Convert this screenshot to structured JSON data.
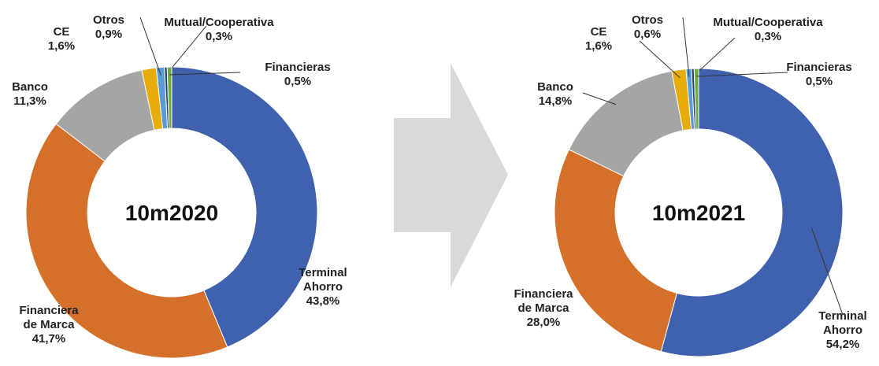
{
  "chart_data": [
    {
      "type": "donut",
      "title": "10m2020",
      "categories": [
        "Terminal Ahorro",
        "Financiera de Marca",
        "Banco",
        "CE",
        "Otros",
        "Mutual/Cooperativa",
        "Financieras"
      ],
      "values": [
        43.8,
        41.7,
        11.3,
        1.6,
        0.9,
        0.3,
        0.5
      ],
      "value_labels": [
        "43,8%",
        "41,7%",
        "11,3%",
        "1,6%",
        "0,9%",
        "0,3%",
        "0,5%"
      ],
      "colors": [
        "#4062ae",
        "#d5702b",
        "#a5a5a5",
        "#e6ac0a",
        "#5b9bd5",
        "#264478",
        "#70ad47"
      ]
    },
    {
      "type": "donut",
      "title": "10m2021",
      "categories": [
        "Terminal Ahorro",
        "Financiera de Marca",
        "Banco",
        "CE",
        "Otros",
        "Mutual/Cooperativa",
        "Financieras"
      ],
      "values": [
        54.2,
        28.0,
        14.8,
        1.6,
        0.6,
        0.3,
        0.5
      ],
      "value_labels": [
        "54,2%",
        "28,0%",
        "14,8%",
        "1,6%",
        "0,6%",
        "0,3%",
        "0,5%"
      ],
      "colors": [
        "#4062ae",
        "#d5702b",
        "#a5a5a5",
        "#e6ac0a",
        "#5b9bd5",
        "#264478",
        "#70ad47"
      ]
    }
  ]
}
